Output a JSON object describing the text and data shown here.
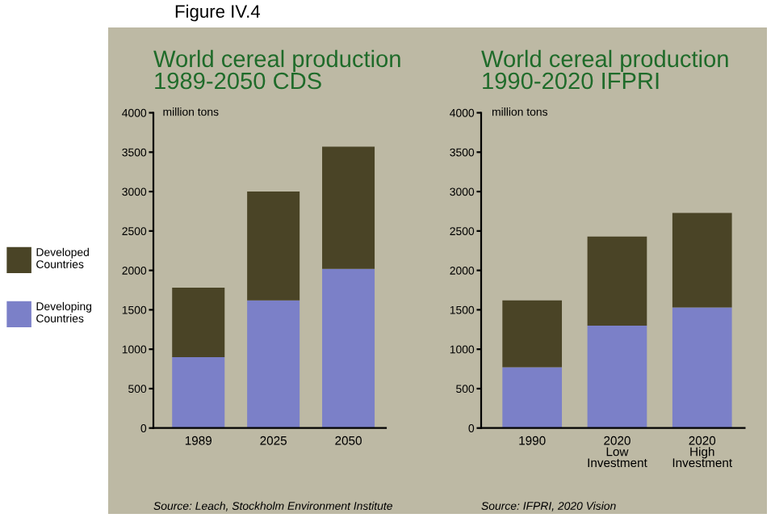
{
  "chart_data": [
    {
      "type": "bar",
      "title": "World cereal production\n1989-2050 CDS",
      "ylabel": "million tons",
      "stacked": true,
      "legend": "left",
      "categories": [
        "1989",
        "2025",
        "2050"
      ],
      "series": [
        {
          "name": "Developing\nCountries",
          "color": "#7b80c8",
          "values": [
            900,
            1620,
            2020
          ]
        },
        {
          "name": "Developed\nCountries",
          "color": "#4a4426",
          "values": [
            880,
            1380,
            1550
          ]
        }
      ],
      "ylim": [
        0,
        4000
      ],
      "yticks": [
        0,
        500,
        1000,
        1500,
        2000,
        2500,
        3000,
        3500,
        4000
      ],
      "annotations": [
        "Figure IV.4",
        "Source: Leach, Stockholm Environment Institute"
      ]
    },
    {
      "type": "bar",
      "title": "World cereal production\n1990-2020 IFPRI",
      "ylabel": "million tons",
      "stacked": true,
      "categories": [
        "1990",
        "2020\nLow\nInvestment",
        "2020\nHigh\nInvestment"
      ],
      "series": [
        {
          "color": "#7b80c8",
          "values": [
            770,
            1300,
            1530
          ]
        },
        {
          "color": "#4a4426",
          "values": [
            850,
            1130,
            1200
          ]
        }
      ],
      "ylim": [
        0,
        4000
      ],
      "yticks": [
        0,
        500,
        1000,
        1500,
        2000,
        2500,
        3000,
        3500,
        4000
      ],
      "annotations": [
        "Source: IFPRI, 2020 Vision"
      ]
    }
  ]
}
